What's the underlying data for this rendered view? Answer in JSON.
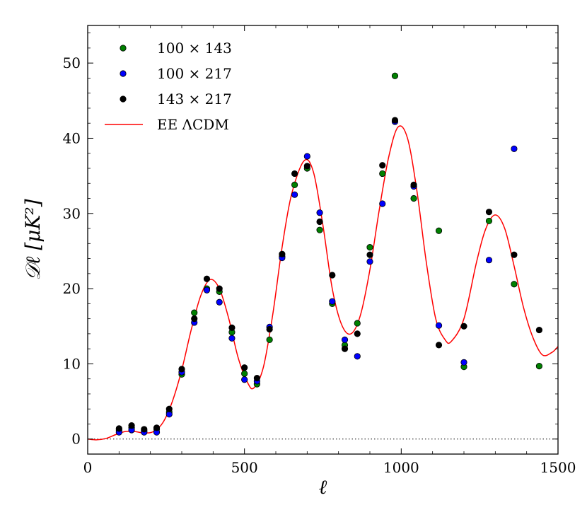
{
  "chart_data": {
    "type": "scatter",
    "xlabel": "ℓ",
    "ylabel": "𝒟ℓ [μK²]",
    "xlim": [
      0,
      1500
    ],
    "ylim": [
      -2,
      55
    ],
    "xticks": [
      0,
      500,
      1000,
      1500
    ],
    "yticks": [
      0,
      10,
      20,
      30,
      40,
      50
    ],
    "xtick_labels": [
      "0",
      "500",
      "1000",
      "1500"
    ],
    "ytick_labels": [
      "0",
      "10",
      "20",
      "30",
      "40",
      "50"
    ],
    "grid": false,
    "zero_line": "dotted",
    "legend_position": "top-left",
    "series": [
      {
        "name": "100 × 143",
        "kind": "scatter",
        "color": "#008000",
        "x": [
          100,
          140,
          180,
          220,
          260,
          300,
          340,
          380,
          420,
          460,
          500,
          540,
          580,
          620,
          660,
          700,
          740,
          780,
          820,
          860,
          900,
          940,
          980,
          1040,
          1120,
          1200,
          1280,
          1360,
          1440
        ],
        "y": [
          1.2,
          1.5,
          1.1,
          1.3,
          3.6,
          8.6,
          16.8,
          20.0,
          19.6,
          14.2,
          8.7,
          7.3,
          13.2,
          24.3,
          33.8,
          36.0,
          27.8,
          18.0,
          12.5,
          15.4,
          25.5,
          35.3,
          48.3,
          32.0,
          27.7,
          9.6,
          29.0,
          20.6,
          9.7
        ]
      },
      {
        "name": "100 × 217",
        "kind": "scatter",
        "color": "#0000ff",
        "x": [
          100,
          140,
          180,
          220,
          260,
          300,
          340,
          380,
          420,
          460,
          500,
          540,
          580,
          620,
          660,
          700,
          740,
          780,
          820,
          860,
          900,
          940,
          980,
          1040,
          1120,
          1200,
          1280,
          1360
        ],
        "y": [
          0.9,
          1.2,
          0.9,
          0.9,
          3.3,
          8.9,
          15.5,
          19.8,
          18.2,
          13.4,
          7.9,
          7.7,
          14.9,
          24.1,
          32.5,
          37.6,
          30.1,
          18.3,
          13.2,
          11.0,
          23.6,
          31.3,
          42.2,
          33.6,
          15.1,
          10.2,
          23.8,
          38.6
        ]
      },
      {
        "name": "143 × 217",
        "kind": "scatter",
        "color": "#000000",
        "x": [
          100,
          140,
          180,
          220,
          260,
          300,
          340,
          380,
          420,
          460,
          500,
          540,
          580,
          620,
          660,
          700,
          740,
          780,
          820,
          860,
          900,
          940,
          980,
          1040,
          1120,
          1200,
          1280,
          1360,
          1440
        ],
        "y": [
          1.4,
          1.8,
          1.3,
          1.5,
          4.0,
          9.3,
          16.0,
          21.3,
          20.0,
          14.8,
          9.5,
          8.1,
          14.6,
          24.6,
          35.3,
          36.3,
          28.9,
          21.8,
          12.0,
          14.0,
          24.5,
          36.4,
          42.4,
          33.8,
          12.5,
          15.0,
          30.2,
          24.5,
          14.5
        ]
      },
      {
        "name": "EE ΛCDM",
        "kind": "line",
        "color": "#ff0000",
        "x": [
          0,
          30,
          60,
          90,
          120,
          150,
          180,
          210,
          240,
          270,
          300,
          330,
          360,
          390,
          420,
          450,
          480,
          510,
          530,
          560,
          590,
          620,
          650,
          690,
          720,
          750,
          780,
          810,
          840,
          870,
          900,
          930,
          960,
          990,
          1020,
          1050,
          1080,
          1110,
          1140,
          1160,
          1200,
          1240,
          1270,
          1300,
          1330,
          1360,
          1390,
          1420,
          1450,
          1480,
          1500
        ],
        "y": [
          0,
          -0.1,
          0.1,
          0.6,
          1.0,
          1.0,
          0.8,
          1.0,
          2.2,
          5.0,
          9.2,
          14.5,
          19.0,
          21.2,
          20.0,
          16.0,
          10.8,
          7.5,
          6.8,
          9.5,
          16.5,
          25.5,
          32.5,
          37.0,
          35.5,
          28.5,
          20.0,
          15.2,
          14.0,
          16.5,
          22.5,
          30.5,
          37.5,
          41.5,
          40.0,
          33.0,
          23.5,
          16.0,
          13.2,
          13.0,
          16.0,
          23.5,
          28.0,
          29.8,
          28.0,
          23.0,
          17.5,
          13.5,
          11.2,
          11.5,
          12.3
        ]
      }
    ]
  }
}
